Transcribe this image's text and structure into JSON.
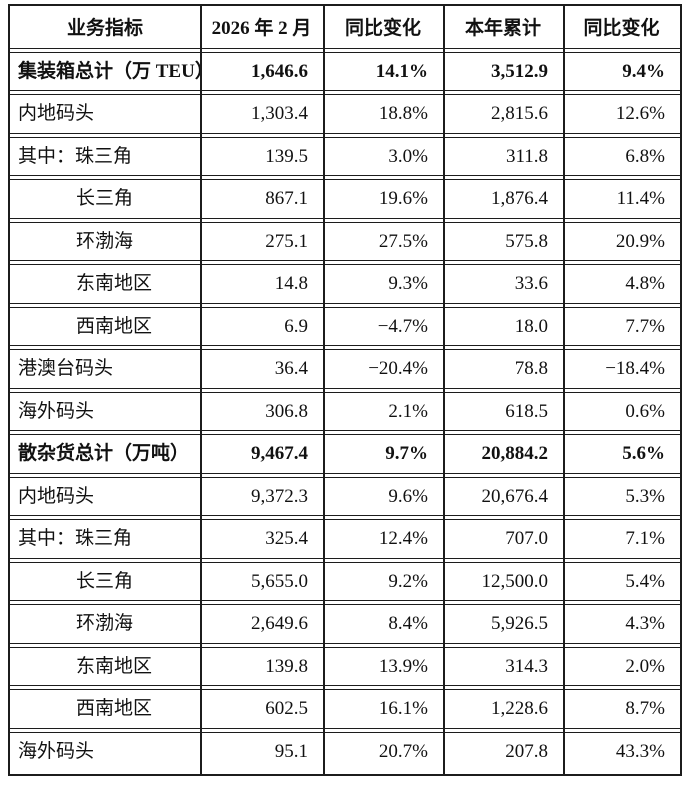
{
  "table": {
    "columns": [
      "业务指标",
      "2026 年 2 月",
      "同比变化",
      "本年累计",
      "同比变化"
    ],
    "rows": [
      {
        "label": "集装箱总计（万 TEU）",
        "indent": 0,
        "bold": true,
        "values": [
          "1,646.6",
          "14.1%",
          "3,512.9",
          "9.4%"
        ]
      },
      {
        "label": "内地码头",
        "indent": 0,
        "bold": false,
        "values": [
          "1,303.4",
          "18.8%",
          "2,815.6",
          "12.6%"
        ]
      },
      {
        "label": "其中：珠三角",
        "indent": 0,
        "bold": false,
        "values": [
          "139.5",
          "3.0%",
          "311.8",
          "6.8%"
        ]
      },
      {
        "label": "长三角",
        "indent": 1,
        "bold": false,
        "values": [
          "867.1",
          "19.6%",
          "1,876.4",
          "11.4%"
        ]
      },
      {
        "label": "环渤海",
        "indent": 1,
        "bold": false,
        "values": [
          "275.1",
          "27.5%",
          "575.8",
          "20.9%"
        ]
      },
      {
        "label": "东南地区",
        "indent": 1,
        "bold": false,
        "values": [
          "14.8",
          "9.3%",
          "33.6",
          "4.8%"
        ]
      },
      {
        "label": "西南地区",
        "indent": 1,
        "bold": false,
        "values": [
          "6.9",
          "−4.7%",
          "18.0",
          "7.7%"
        ]
      },
      {
        "label": "港澳台码头",
        "indent": 0,
        "bold": false,
        "values": [
          "36.4",
          "−20.4%",
          "78.8",
          "−18.4%"
        ]
      },
      {
        "label": "海外码头",
        "indent": 0,
        "bold": false,
        "values": [
          "306.8",
          "2.1%",
          "618.5",
          "0.6%"
        ]
      },
      {
        "label": "散杂货总计（万吨）",
        "indent": 0,
        "bold": true,
        "values": [
          "9,467.4",
          "9.7%",
          "20,884.2",
          "5.6%"
        ]
      },
      {
        "label": "内地码头",
        "indent": 0,
        "bold": false,
        "values": [
          "9,372.3",
          "9.6%",
          "20,676.4",
          "5.3%"
        ]
      },
      {
        "label": "其中：珠三角",
        "indent": 0,
        "bold": false,
        "values": [
          "325.4",
          "12.4%",
          "707.0",
          "7.1%"
        ]
      },
      {
        "label": "长三角",
        "indent": 1,
        "bold": false,
        "values": [
          "5,655.0",
          "9.2%",
          "12,500.0",
          "5.4%"
        ]
      },
      {
        "label": "环渤海",
        "indent": 1,
        "bold": false,
        "values": [
          "2,649.6",
          "8.4%",
          "5,926.5",
          "4.3%"
        ]
      },
      {
        "label": "东南地区",
        "indent": 1,
        "bold": false,
        "values": [
          "139.8",
          "13.9%",
          "314.3",
          "2.0%"
        ]
      },
      {
        "label": "西南地区",
        "indent": 1,
        "bold": false,
        "values": [
          "602.5",
          "16.1%",
          "1,228.6",
          "8.7%"
        ]
      },
      {
        "label": "海外码头",
        "indent": 0,
        "bold": false,
        "values": [
          "95.1",
          "20.7%",
          "207.8",
          "43.3%"
        ]
      }
    ]
  }
}
